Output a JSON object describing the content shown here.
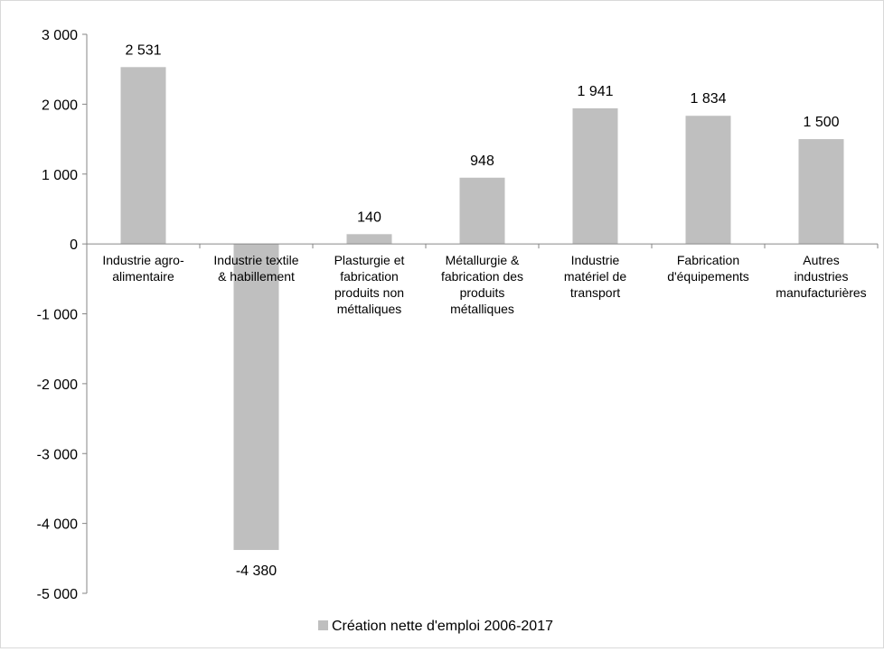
{
  "chart_data": {
    "type": "bar",
    "categories": [
      [
        "Industrie agro-",
        "alimentaire"
      ],
      [
        "Industrie textile",
        "& habillement"
      ],
      [
        "Plasturgie et",
        "fabrication",
        "produits non",
        "méttaliques"
      ],
      [
        "Métallurgie &",
        "fabrication des",
        "produits",
        "métalliques"
      ],
      [
        "Industrie",
        "matériel de",
        "transport"
      ],
      [
        "Fabrication",
        "d'équipements"
      ],
      [
        "Autres",
        "industries",
        "manufacturières"
      ]
    ],
    "series": [
      {
        "name": "Création nette d'emploi 2006-2017",
        "values": [
          2531,
          -4380,
          140,
          948,
          1941,
          1834,
          1500
        ],
        "value_labels": [
          "2 531",
          "-4 380",
          "140",
          "948",
          "1 941",
          "1 834",
          "1 500"
        ]
      }
    ],
    "ylim": [
      -5000,
      3000
    ],
    "yticks": [
      3000,
      2000,
      1000,
      0,
      -1000,
      -2000,
      -3000,
      -4000,
      -5000
    ],
    "ytick_labels": [
      "3 000",
      "2 000",
      "1 000",
      "0",
      "-1 000",
      "-2 000",
      "-3 000",
      "-4 000",
      "-5 000"
    ],
    "grid": false,
    "legend_position": "bottom",
    "colors": {
      "bar": "#bfbfbf",
      "axis": "#868686",
      "text": "#000000"
    }
  }
}
